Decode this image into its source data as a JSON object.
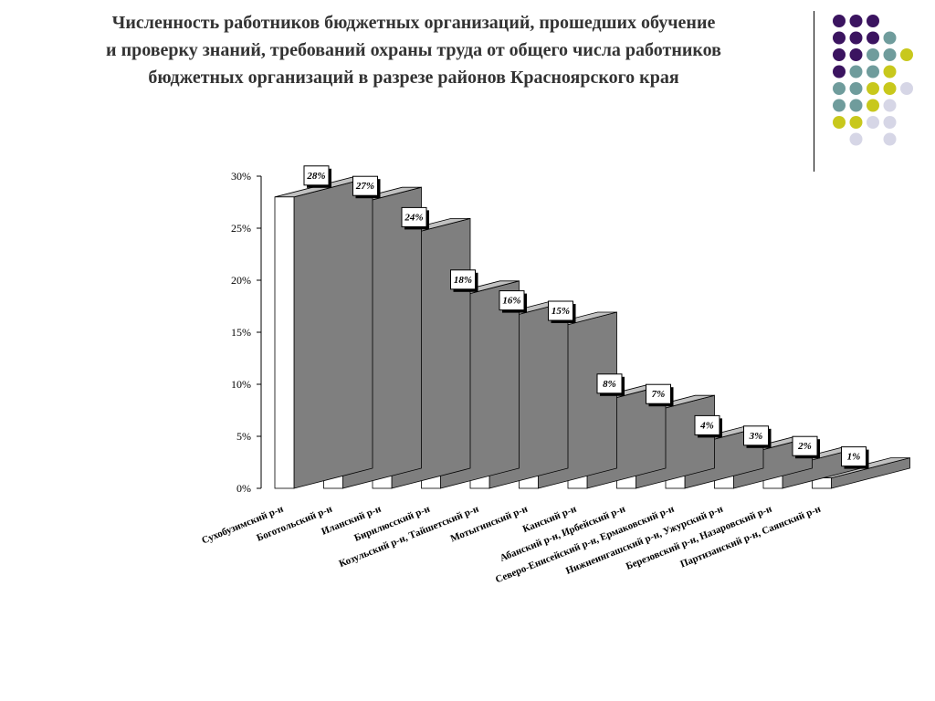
{
  "title": {
    "lines": [
      "Численность работников бюджетных организаций,  прошедших обучение",
      "и проверку знаний, требований охраны труда от общего числа работников",
      "бюджетных организаций в разрезе районов Красноярского края"
    ]
  },
  "colors": {
    "dark_purple": "#3b1460",
    "teal": "#6f9c9c",
    "yellow_green": "#c8c81c",
    "light_lavender": "#d6d6e6",
    "bar_front": "#ffffff",
    "bar_side": "#7f7f7f",
    "bar_top": "#c0c0c0"
  },
  "decor_dots": [
    [
      "dark_purple",
      "dark_purple",
      "dark_purple",
      null,
      null
    ],
    [
      "dark_purple",
      "dark_purple",
      "dark_purple",
      "teal",
      null
    ],
    [
      "dark_purple",
      "dark_purple",
      "teal",
      "teal",
      "yellow_green"
    ],
    [
      "dark_purple",
      "teal",
      "teal",
      "yellow_green",
      null
    ],
    [
      "teal",
      "teal",
      "yellow_green",
      "yellow_green",
      "light_lavender"
    ],
    [
      "teal",
      "teal",
      "yellow_green",
      "light_lavender",
      null
    ],
    [
      "yellow_green",
      "yellow_green",
      "light_lavender",
      "light_lavender",
      null
    ],
    [
      null,
      "light_lavender",
      null,
      "light_lavender",
      null
    ]
  ],
  "chart_data": {
    "type": "bar",
    "style": "3d",
    "title": "",
    "xlabel": "",
    "ylabel": "",
    "ylim": [
      0,
      30
    ],
    "y_ticks": [
      "0%",
      "5%",
      "10%",
      "15%",
      "20%",
      "25%",
      "30%"
    ],
    "categories": [
      "Сухобузимский р-н",
      "Боготольский р-н",
      "Иланский р-н",
      "Бирилюсский р-н",
      "Козульский р-н, Тайшетский р-н",
      "Мотыгинский р-н",
      "Канский р-н",
      "Абанский р-н, Ирбейский р-н",
      "Северо-Енисейский р-н, Ермаковский р-н",
      "Нижнеингашский р-н, Ужурский р-н",
      "Березовский р-н, Назаровский р-н",
      "Партизанский р-н, Саянский р-н"
    ],
    "values": [
      28,
      27,
      24,
      18,
      16,
      15,
      8,
      7,
      4,
      3,
      2,
      1
    ],
    "data_labels": [
      "28%",
      "27%",
      "24%",
      "18%",
      "16%",
      "15%",
      "8%",
      "7%",
      "4%",
      "3%",
      "2%",
      "1%"
    ]
  }
}
